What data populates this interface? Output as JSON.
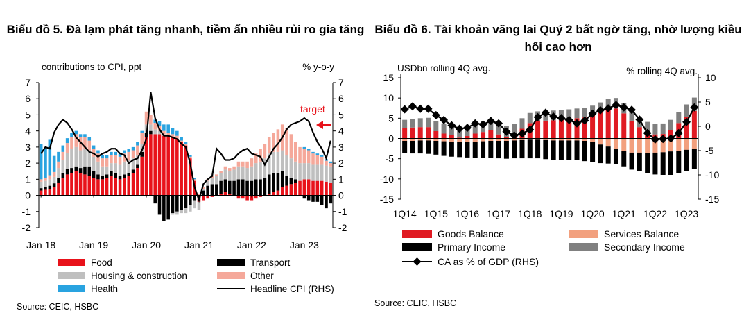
{
  "left": {
    "title": "Biểu đồ 5. Đà lạm phát tăng nhanh, tiềm ẩn nhiều rủi ro gia tăng",
    "source": "Source: CEIC, HSBC",
    "chart_data": {
      "type": "bar",
      "stacked": true,
      "units_left": "contributions  to CPI, ppt",
      "units_right": "% y-o-y",
      "ylim": [
        -2,
        7
      ],
      "yticks": [
        "-2",
        "-1",
        "0",
        "1",
        "2",
        "3",
        "4",
        "5",
        "6",
        "7"
      ],
      "x_tick_labels": [
        "Jan 18",
        "Jan 19",
        "Jan 20",
        "Jan 21",
        "Jan 22",
        "Jan 23"
      ],
      "annotation": "target",
      "target_value": 4,
      "colors": {
        "food": "#e8121a",
        "transport": "#000000",
        "housing": "#bfbfbf",
        "other": "#f5a89a",
        "health": "#29a3e0",
        "cpi": "#000000",
        "arrow": "#e8121a"
      },
      "legend": [
        "Food",
        "Transport",
        "Housing & construction",
        "Other",
        "Health",
        "Headline CPI (RHS)"
      ],
      "months": 67,
      "series": [
        {
          "name": "Food",
          "values": [
            0.3,
            0.35,
            0.4,
            0.5,
            0.8,
            1.1,
            1.3,
            1.4,
            1.5,
            1.4,
            1.3,
            1.2,
            1.1,
            1.0,
            1.0,
            1.1,
            1.2,
            1.1,
            1.0,
            1.1,
            1.2,
            1.4,
            1.7,
            2.4,
            3.6,
            3.8,
            3.8,
            3.8,
            3.7,
            3.7,
            3.6,
            3.5,
            3.3,
            3.1,
            2.3,
            0.9,
            -0.4,
            -0.3,
            -0.2,
            -0.1,
            0.0,
            0.1,
            0.2,
            0.1,
            0.0,
            -0.2,
            -0.2,
            -0.3,
            -0.3,
            -0.2,
            -0.1,
            0.0,
            0.1,
            0.2,
            0.3,
            0.5,
            0.6,
            0.7,
            0.8,
            0.9,
            1.0,
            1.0,
            0.9,
            0.9,
            0.9,
            0.85,
            0.8
          ]
        },
        {
          "name": "Transport",
          "values": [
            0.15,
            0.15,
            0.2,
            0.25,
            0.3,
            0.3,
            0.35,
            0.3,
            0.3,
            0.3,
            0.5,
            0.6,
            0.4,
            0.3,
            0.2,
            0.2,
            0.3,
            0.3,
            0.2,
            0.2,
            0.2,
            0.2,
            0.2,
            0.3,
            0.3,
            0.2,
            -0.5,
            -1.2,
            -1.6,
            -1.5,
            -1.1,
            -1.0,
            -0.9,
            -0.8,
            -0.6,
            -0.3,
            0.0,
            0.3,
            0.6,
            0.7,
            0.7,
            0.8,
            0.8,
            0.8,
            0.9,
            1.0,
            1.0,
            0.9,
            0.9,
            1.0,
            1.0,
            1.1,
            1.2,
            1.2,
            1.1,
            1.0,
            0.6,
            0.4,
            0.2,
            0.0,
            -0.2,
            -0.3,
            -0.4,
            -0.4,
            -0.6,
            -0.8,
            -0.5
          ]
        },
        {
          "name": "Housing & construction",
          "values": [
            0.4,
            0.4,
            0.4,
            0.4,
            0.6,
            0.8,
            1.0,
            1.2,
            1.2,
            1.1,
            1.1,
            1.0,
            0.9,
            0.8,
            0.6,
            0.5,
            0.5,
            0.6,
            0.7,
            0.8,
            0.8,
            0.7,
            0.6,
            0.5,
            0.5,
            0.4,
            0.3,
            0.2,
            0.1,
            0.0,
            -0.1,
            -0.2,
            -0.2,
            -0.3,
            -0.4,
            -0.5,
            -0.5,
            0.1,
            0.3,
            0.4,
            0.5,
            0.5,
            0.6,
            0.6,
            0.7,
            0.8,
            0.8,
            0.8,
            0.9,
            1.0,
            1.1,
            1.2,
            1.3,
            1.3,
            1.3,
            1.3,
            1.3,
            1.2,
            1.1,
            1.1,
            1.0,
            1.0,
            1.0,
            1.0,
            1.0,
            1.0,
            1.0
          ]
        },
        {
          "name": "Other",
          "values": [
            0.15,
            0.2,
            0.25,
            0.3,
            0.4,
            0.5,
            0.6,
            0.7,
            0.8,
            0.8,
            0.7,
            0.6,
            0.5,
            0.5,
            0.5,
            0.5,
            0.5,
            0.5,
            0.5,
            0.5,
            0.5,
            0.5,
            0.6,
            0.7,
            0.8,
            0.6,
            0.4,
            0.3,
            0.2,
            0.2,
            0.2,
            0.2,
            0.1,
            0.1,
            0.1,
            0.1,
            0.1,
            0.1,
            0.1,
            0.1,
            0.1,
            0.1,
            0.2,
            0.2,
            0.2,
            0.3,
            0.3,
            0.4,
            0.5,
            0.6,
            0.8,
            0.9,
            1.0,
            1.2,
            1.4,
            1.6,
            1.7,
            1.5,
            1.2,
            1.0,
            0.9,
            0.8,
            0.7,
            0.6,
            0.5,
            0.3,
            0.2
          ]
        },
        {
          "name": "Health",
          "values": [
            2.2,
            1.9,
            2.2,
            1.0,
            0.6,
            0.4,
            0.3,
            0.3,
            0.2,
            0.2,
            0.2,
            0.2,
            0.2,
            0.2,
            0.2,
            0.2,
            0.2,
            0.2,
            0.2,
            0.2,
            0.2,
            0.2,
            0.2,
            0.1,
            0.0,
            0.0,
            0.2,
            0.3,
            0.4,
            0.5,
            0.4,
            0.3,
            0.2,
            0.1,
            0.1,
            0.1,
            0.0,
            0.0,
            0.0,
            0.0,
            0.0,
            0.0,
            0.0,
            0.0,
            0.0,
            0.0,
            0.0,
            0.0,
            0.0,
            0.0,
            0.0,
            0.0,
            0.0,
            0.0,
            0.0,
            0.0,
            0.0,
            0.0,
            0.0,
            0.0,
            0.1,
            0.1,
            0.1,
            0.1,
            0.1,
            0.1,
            0.1
          ]
        },
        {
          "name": "Headline CPI (RHS)",
          "values": [
            2.6,
            3.0,
            2.9,
            3.9,
            4.4,
            4.7,
            4.5,
            4.1,
            3.6,
            3.3,
            3.0,
            2.7,
            2.6,
            2.4,
            2.6,
            2.7,
            2.9,
            2.9,
            2.6,
            2.5,
            2.0,
            2.2,
            2.3,
            2.8,
            3.5,
            6.4,
            4.8,
            4.1,
            3.7,
            3.7,
            3.6,
            3.5,
            3.2,
            3.0,
            2.0,
            0.5,
            -0.3,
            0.7,
            1.0,
            1.2,
            2.9,
            2.6,
            2.2,
            2.2,
            2.3,
            2.6,
            2.8,
            2.9,
            2.6,
            2.5,
            2.4,
            1.9,
            2.4,
            2.9,
            3.2,
            3.6,
            4.1,
            4.4,
            4.5,
            4.6,
            4.8,
            4.6,
            3.9,
            3.3,
            2.9,
            2.3,
            3.4
          ]
        }
      ]
    },
    "axis_left_label": "contributions  to CPI, ppt",
    "axis_right_label": "% y-o-y",
    "annotation": "target",
    "legend": {
      "food": "Food",
      "transport": "Transport",
      "housing": "Housing & construction",
      "other": "Other",
      "health": "Health",
      "cpi": "Headline CPI (RHS)"
    }
  },
  "right": {
    "title": "Biểu đồ 6. Tài khoản vãng lai Quý 2 bất ngờ tăng, nhờ lượng kiều hối cao hơn",
    "source": "Source: CEIC, HSBC",
    "chart_data": {
      "type": "bar",
      "stacked": true,
      "units_left": "USDbn rolling 4Q avg.",
      "units_right": "% rolling 4Q avg.",
      "ylim": [
        -15,
        15
      ],
      "yticks_left": [
        "-15",
        "-10",
        "-5",
        "0",
        "5",
        "10",
        "15"
      ],
      "y2lim": [
        -15,
        10
      ],
      "yticks_right": [
        "-15",
        "-10",
        "-5",
        "0",
        "5",
        "10"
      ],
      "categories": [
        "1Q14",
        "2Q14",
        "3Q14",
        "4Q14",
        "1Q15",
        "2Q15",
        "3Q15",
        "4Q15",
        "1Q16",
        "2Q16",
        "3Q16",
        "4Q16",
        "1Q17",
        "2Q17",
        "3Q17",
        "4Q17",
        "1Q18",
        "2Q18",
        "3Q18",
        "4Q18",
        "1Q19",
        "2Q19",
        "3Q19",
        "4Q19",
        "1Q20",
        "2Q20",
        "3Q20",
        "4Q20",
        "1Q21",
        "2Q21",
        "3Q21",
        "4Q21",
        "1Q22",
        "2Q22",
        "3Q22",
        "4Q22",
        "1Q23",
        "2Q23"
      ],
      "x_tick_labels": [
        "1Q14",
        "1Q15",
        "1Q16",
        "1Q17",
        "1Q18",
        "1Q19",
        "1Q20",
        "1Q21",
        "1Q22",
        "1Q23"
      ],
      "colors": {
        "goods": "#e01a22",
        "services": "#f2a07e",
        "primary": "#000000",
        "secondary": "#808080",
        "ca": "#000000"
      },
      "legend": [
        "Goods Balance",
        "Services Balance",
        "Primary Income",
        "Secondary Income",
        "CA as % of GDP (RHS)"
      ],
      "series": [
        {
          "name": "Goods Balance",
          "values": [
            2.6,
            2.7,
            2.8,
            2.8,
            1.8,
            1.2,
            0.8,
            0.2,
            0.6,
            1.2,
            1.6,
            2.0,
            1.0,
            0.4,
            1.0,
            2.4,
            3.8,
            4.2,
            4.4,
            4.5,
            4.6,
            4.8,
            5.0,
            5.2,
            5.7,
            6.5,
            7.2,
            7.4,
            6.2,
            4.4,
            2.8,
            1.6,
            1.0,
            1.1,
            2.0,
            3.8,
            5.4,
            6.8
          ]
        },
        {
          "name": "Services Balance",
          "values": [
            -0.6,
            -0.6,
            -0.5,
            -0.5,
            -0.6,
            -0.7,
            -0.8,
            -0.8,
            -0.8,
            -0.8,
            -0.7,
            -0.6,
            -0.6,
            -0.6,
            -0.5,
            -0.4,
            -0.3,
            -0.3,
            -0.4,
            -0.5,
            -0.5,
            -0.5,
            -0.5,
            -0.6,
            -0.9,
            -1.5,
            -2.0,
            -2.5,
            -3.0,
            -3.5,
            -3.5,
            -3.6,
            -3.5,
            -3.4,
            -3.2,
            -3.0,
            -2.8,
            -2.6
          ]
        },
        {
          "name": "Primary Income",
          "values": [
            -3.0,
            -3.1,
            -3.2,
            -3.3,
            -3.4,
            -3.6,
            -3.7,
            -3.8,
            -3.9,
            -4.0,
            -4.1,
            -4.2,
            -4.3,
            -4.4,
            -4.4,
            -4.5,
            -4.6,
            -4.6,
            -4.7,
            -4.8,
            -4.8,
            -4.9,
            -4.9,
            -5.0,
            -5.0,
            -4.6,
            -4.2,
            -3.9,
            -3.9,
            -4.2,
            -4.6,
            -5.0,
            -5.4,
            -5.6,
            -5.8,
            -5.6,
            -5.2,
            -4.9
          ]
        },
        {
          "name": "Secondary Income",
          "values": [
            2.0,
            2.1,
            2.2,
            2.3,
            2.4,
            2.5,
            2.5,
            2.6,
            2.6,
            2.6,
            2.7,
            2.7,
            2.7,
            2.6,
            2.6,
            2.6,
            2.5,
            2.5,
            2.4,
            2.4,
            2.4,
            2.4,
            2.4,
            2.4,
            2.4,
            2.4,
            2.5,
            2.6,
            2.5,
            2.4,
            2.4,
            2.5,
            2.6,
            2.6,
            2.6,
            2.7,
            3.0,
            3.3
          ]
        },
        {
          "name": "CA as % of GDP (RHS)",
          "values": [
            3.5,
            4.1,
            3.6,
            3.6,
            2.3,
            1.3,
            0.2,
            -0.5,
            -0.3,
            0.6,
            0.4,
            1.1,
            0.6,
            -1.1,
            -1.9,
            -1.5,
            -0.7,
            1.9,
            2.8,
            2.0,
            1.7,
            1.3,
            0.6,
            1.2,
            2.6,
            3.3,
            3.7,
            4.4,
            3.9,
            3.4,
            1.4,
            -1.4,
            -2.7,
            -2.6,
            -2.5,
            -1.4,
            0.9,
            3.9
          ]
        }
      ]
    },
    "axis_left_label": "USDbn rolling 4Q avg.",
    "axis_right_label": "% rolling 4Q avg.",
    "legend": {
      "goods": "Goods Balance",
      "services": "Services Balance",
      "primary": "Primary Income",
      "secondary": "Secondary Income",
      "ca": "CA as % of GDP (RHS)"
    }
  }
}
